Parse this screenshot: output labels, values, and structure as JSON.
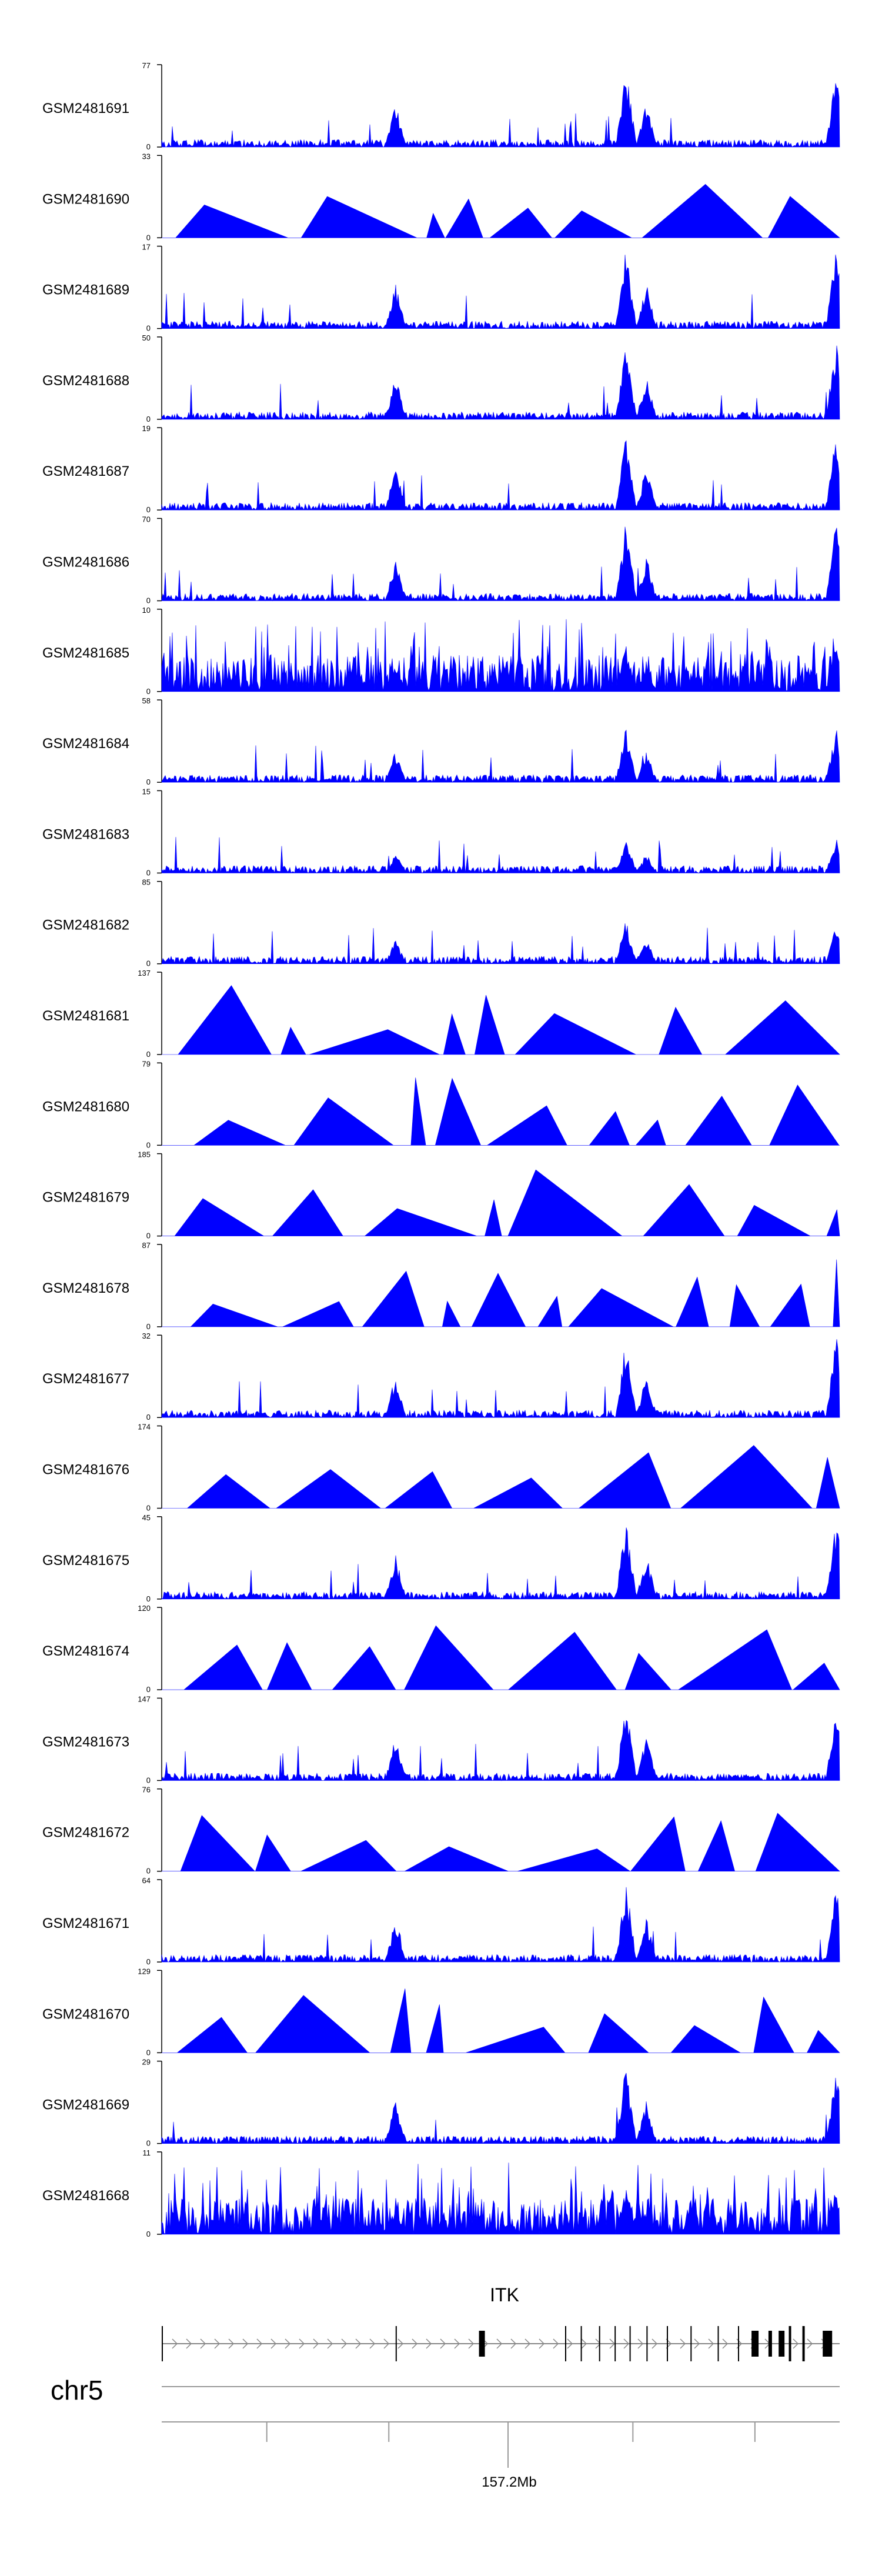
{
  "chart_data": {
    "type": "area",
    "description_region": "genomic coverage tracks",
    "series_color": "#0000ff",
    "tracks": [
      {
        "name": "GSM2481691",
        "ymax": 77,
        "pattern": "dense",
        "spike": 1.0,
        "seed": 11
      },
      {
        "name": "GSM2481690",
        "ymax": 33,
        "pattern": "triangles",
        "seed": 12
      },
      {
        "name": "GSM2481689",
        "ymax": 17,
        "pattern": "dense",
        "spike": 1.0,
        "seed": 13
      },
      {
        "name": "GSM2481688",
        "ymax": 50,
        "pattern": "dense",
        "spike": 1.0,
        "seed": 14
      },
      {
        "name": "GSM2481687",
        "ymax": 19,
        "pattern": "dense",
        "spike": 1.0,
        "seed": 15
      },
      {
        "name": "GSM2481686",
        "ymax": 70,
        "pattern": "dense",
        "spike": 1.0,
        "seed": 16
      },
      {
        "name": "GSM2481685",
        "ymax": 10,
        "pattern": "noisy",
        "seed": 17
      },
      {
        "name": "GSM2481684",
        "ymax": 58,
        "pattern": "dense",
        "spike": 0.7,
        "seed": 18
      },
      {
        "name": "GSM2481683",
        "ymax": 15,
        "pattern": "dense",
        "spike": 0.45,
        "seed": 19
      },
      {
        "name": "GSM2481682",
        "ymax": 85,
        "pattern": "dense",
        "spike": 0.55,
        "seed": 20
      },
      {
        "name": "GSM2481681",
        "ymax": 137,
        "pattern": "triangles",
        "seed": 21
      },
      {
        "name": "GSM2481680",
        "ymax": 79,
        "pattern": "triangles",
        "seed": 22
      },
      {
        "name": "GSM2481679",
        "ymax": 185,
        "pattern": "triangles",
        "seed": 23
      },
      {
        "name": "GSM2481678",
        "ymax": 87,
        "pattern": "triangles",
        "seed": 24
      },
      {
        "name": "GSM2481677",
        "ymax": 32,
        "pattern": "dense",
        "spike": 1.0,
        "seed": 25
      },
      {
        "name": "GSM2481676",
        "ymax": 174,
        "pattern": "triangles",
        "seed": 26
      },
      {
        "name": "GSM2481675",
        "ymax": 45,
        "pattern": "dense",
        "spike": 1.0,
        "seed": 27
      },
      {
        "name": "GSM2481674",
        "ymax": 120,
        "pattern": "triangles",
        "seed": 28
      },
      {
        "name": "GSM2481673",
        "ymax": 147,
        "pattern": "dense",
        "spike": 1.0,
        "seed": 29
      },
      {
        "name": "GSM2481672",
        "ymax": 76,
        "pattern": "triangles",
        "seed": 30
      },
      {
        "name": "GSM2481671",
        "ymax": 64,
        "pattern": "dense",
        "spike": 1.0,
        "seed": 31
      },
      {
        "name": "GSM2481670",
        "ymax": 129,
        "pattern": "triangles",
        "seed": 32
      },
      {
        "name": "GSM2481669",
        "ymax": 29,
        "pattern": "dense",
        "spike": 1.0,
        "seed": 33
      },
      {
        "name": "GSM2481668",
        "ymax": 11,
        "pattern": "noisy",
        "seed": 34
      }
    ],
    "gene": {
      "name": "ITK",
      "strand": "+"
    },
    "chromosome": "chr5",
    "position_label": "157.2Mb"
  }
}
